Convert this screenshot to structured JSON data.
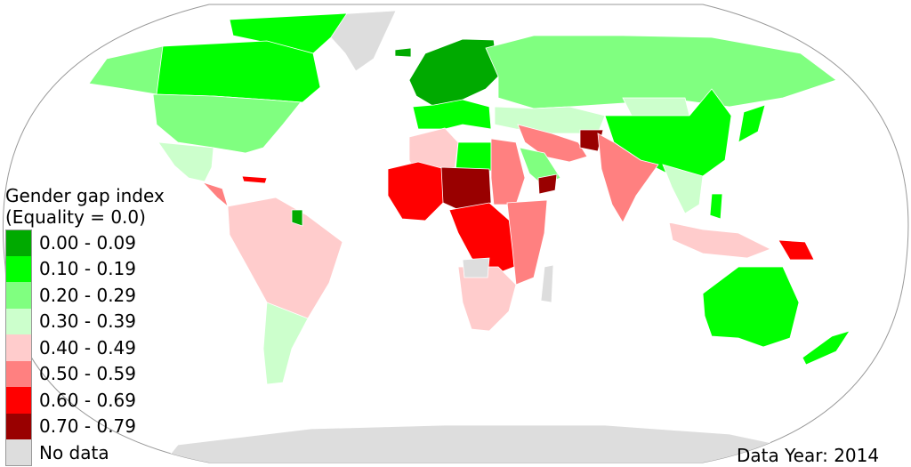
{
  "legend": {
    "title_line1": "Gender gap index",
    "title_line2": "(Equality = 0.0)",
    "items": [
      {
        "label": "0.00 - 0.09",
        "color": "#00aa00"
      },
      {
        "label": "0.10 - 0.19",
        "color": "#00ff00"
      },
      {
        "label": "0.20 - 0.29",
        "color": "#80ff80"
      },
      {
        "label": "0.30 - 0.39",
        "color": "#ccffcc"
      },
      {
        "label": "0.40 - 0.49",
        "color": "#ffcccc"
      },
      {
        "label": "0.50 - 0.59",
        "color": "#ff8080"
      },
      {
        "label": "0.60 - 0.69",
        "color": "#ff0000"
      },
      {
        "label": "0.70 - 0.79",
        "color": "#990000"
      },
      {
        "label": "No data",
        "color": "#dddddd"
      }
    ]
  },
  "data_year_label": "Data Year:",
  "data_year_value": "2014",
  "colors": {
    "ocean": "#ffffff",
    "graticule_outline": "#999999",
    "border": "#ffffff"
  }
}
